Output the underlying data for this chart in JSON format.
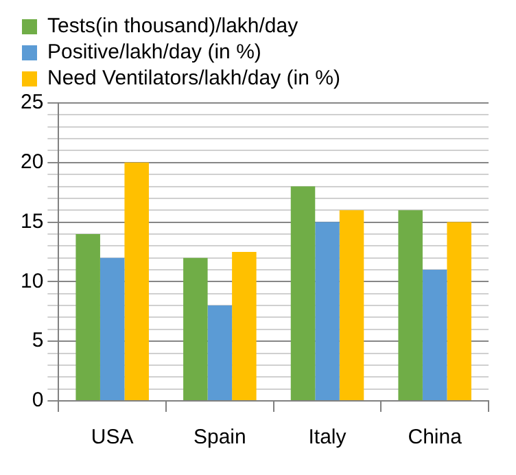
{
  "chart_data": {
    "type": "bar",
    "categories": [
      "USA",
      "Spain",
      "Italy",
      "China"
    ],
    "series": [
      {
        "name": "Tests(in thousand)/lakh/day",
        "color": "#70ad47",
        "values": [
          14,
          12,
          18,
          16
        ]
      },
      {
        "name": "Positive/lakh/day (in %)",
        "color": "#5b9bd5",
        "values": [
          12,
          8,
          15,
          11
        ]
      },
      {
        "name": "Need Ventilators/lakh/day (in %)",
        "color": "#ffc000",
        "values": [
          20,
          12.5,
          16,
          15
        ]
      }
    ],
    "ylim": [
      0,
      25
    ],
    "yticks": [
      0,
      {
        "value": 1,
        "label": null
      },
      {
        "value": 2,
        "label": null
      },
      {
        "value": 3,
        "label": null
      },
      {
        "value": 4,
        "label": null
      },
      5,
      {
        "value": 6,
        "label": null
      },
      {
        "value": 7,
        "label": null
      },
      {
        "value": 8,
        "label": null
      },
      {
        "value": 9,
        "label": null
      },
      10,
      {
        "value": 11,
        "label": null
      },
      {
        "value": 12,
        "label": null
      },
      {
        "value": 13,
        "label": null
      },
      {
        "value": 14,
        "label": null
      },
      15,
      {
        "value": 16,
        "label": null
      },
      {
        "value": 17,
        "label": null
      },
      {
        "value": 18,
        "label": null
      },
      {
        "value": 19,
        "label": null
      },
      20,
      {
        "value": 21,
        "label": null
      },
      {
        "value": 22,
        "label": null
      },
      {
        "value": 23,
        "label": null
      },
      {
        "value": 24,
        "label": null
      },
      25
    ],
    "grid": "y",
    "legend": "top"
  }
}
